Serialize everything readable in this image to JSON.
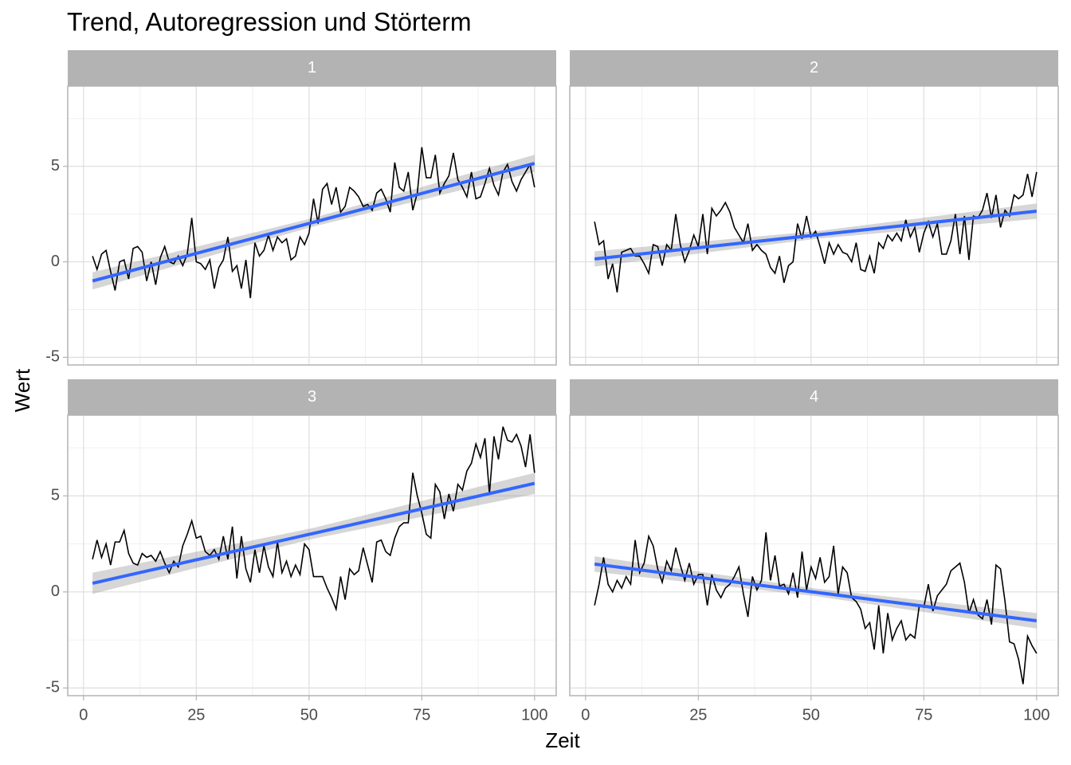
{
  "chart_data": {
    "type": "line",
    "title": "Trend, Autoregression und Störterm",
    "x_label": "Zeit",
    "y_label": "Wert",
    "xlim": [
      -3.5,
      104.8
    ],
    "ylim": [
      -5.4,
      9.2
    ],
    "xticks": [
      0,
      25,
      50,
      75,
      100
    ],
    "yticks": [
      -5,
      0,
      5
    ],
    "grid": true,
    "minor_grid": true,
    "line_color": "#000000",
    "fit_color": "#3366FF",
    "band_color": "#999999",
    "x": [
      2,
      3,
      4,
      5,
      6,
      7,
      8,
      9,
      10,
      11,
      12,
      13,
      14,
      15,
      16,
      17,
      18,
      19,
      20,
      21,
      22,
      23,
      24,
      25,
      26,
      27,
      28,
      29,
      30,
      31,
      32,
      33,
      34,
      35,
      36,
      37,
      38,
      39,
      40,
      41,
      42,
      43,
      44,
      45,
      46,
      47,
      48,
      49,
      50,
      51,
      52,
      53,
      54,
      55,
      56,
      57,
      58,
      59,
      60,
      61,
      62,
      63,
      64,
      65,
      66,
      67,
      68,
      69,
      70,
      71,
      72,
      73,
      74,
      75,
      76,
      77,
      78,
      79,
      80,
      81,
      82,
      83,
      84,
      85,
      86,
      87,
      88,
      89,
      90,
      91,
      92,
      93,
      94,
      95,
      96,
      97,
      98,
      99,
      100
    ],
    "facets": [
      {
        "name": "1",
        "values": [
          0.3,
          -0.4,
          0.4,
          0.6,
          -0.5,
          -1.5,
          0.0,
          0.1,
          -0.9,
          0.7,
          0.8,
          0.5,
          -1.0,
          0.0,
          -1.2,
          0.2,
          0.8,
          0.0,
          -0.1,
          0.3,
          -0.2,
          0.4,
          2.3,
          0.0,
          -0.1,
          -0.4,
          0.1,
          -1.4,
          -0.3,
          0.1,
          1.3,
          -0.5,
          -0.2,
          -1.4,
          0.1,
          -1.9,
          1.0,
          0.3,
          0.6,
          1.4,
          0.6,
          1.3,
          1.0,
          1.2,
          0.1,
          0.3,
          1.3,
          0.9,
          1.5,
          3.3,
          2.0,
          3.8,
          4.1,
          3.0,
          3.9,
          2.6,
          2.9,
          3.9,
          3.7,
          3.4,
          2.9,
          3.0,
          2.7,
          3.6,
          3.8,
          3.3,
          2.6,
          5.2,
          3.9,
          3.7,
          4.7,
          2.7,
          3.6,
          6.0,
          4.4,
          4.4,
          5.6,
          3.6,
          4.1,
          4.5,
          5.7,
          4.3,
          3.9,
          3.4,
          4.7,
          3.3,
          3.4,
          4.1,
          4.9,
          4.0,
          3.5,
          4.7,
          5.1,
          4.2,
          3.7,
          4.3,
          4.7,
          5.1,
          3.9
        ],
        "fit": {
          "x": [
            2,
            51,
            100
          ],
          "y": [
            -1.0,
            2.07,
            5.15
          ],
          "lower": [
            -1.45,
            1.85,
            4.7
          ],
          "upper": [
            -0.55,
            2.3,
            5.6
          ]
        }
      },
      {
        "name": "2",
        "values": [
          2.1,
          0.9,
          1.1,
          -0.9,
          -0.1,
          -1.6,
          0.5,
          0.6,
          0.7,
          0.3,
          0.3,
          -0.1,
          -0.6,
          0.9,
          0.8,
          -0.2,
          0.9,
          0.6,
          2.5,
          0.9,
          0.0,
          0.6,
          1.4,
          0.8,
          2.5,
          0.4,
          2.8,
          2.4,
          2.7,
          3.1,
          2.6,
          1.8,
          1.4,
          1.0,
          2.0,
          0.6,
          0.9,
          0.6,
          0.4,
          -0.3,
          -0.6,
          0.3,
          -1.1,
          -0.2,
          0.0,
          2.0,
          1.2,
          2.4,
          1.3,
          1.6,
          0.8,
          -0.1,
          1.0,
          0.4,
          0.9,
          0.5,
          0.4,
          0.0,
          1.0,
          -0.4,
          -0.5,
          0.3,
          -0.6,
          1.0,
          0.7,
          1.4,
          1.1,
          1.5,
          1.1,
          2.2,
          1.3,
          1.8,
          0.5,
          1.5,
          2.1,
          1.3,
          2.0,
          0.4,
          0.4,
          1.1,
          2.5,
          0.4,
          2.4,
          0.1,
          2.4,
          2.3,
          2.7,
          3.6,
          2.3,
          3.5,
          1.8,
          2.7,
          2.4,
          3.5,
          3.3,
          3.5,
          4.6,
          3.4,
          4.7
        ],
        "fit": {
          "x": [
            2,
            51,
            100
          ],
          "y": [
            0.15,
            1.4,
            2.65
          ],
          "lower": [
            -0.25,
            1.2,
            2.25
          ],
          "upper": [
            0.55,
            1.6,
            3.05
          ]
        }
      },
      {
        "name": "3",
        "values": [
          1.7,
          2.7,
          1.8,
          2.5,
          1.4,
          2.6,
          2.6,
          3.2,
          2.0,
          1.5,
          1.4,
          2.0,
          1.8,
          1.9,
          1.6,
          2.1,
          1.5,
          1.0,
          1.6,
          1.3,
          2.4,
          3.0,
          3.7,
          2.8,
          2.9,
          2.1,
          1.9,
          2.2,
          1.7,
          2.9,
          1.7,
          3.4,
          0.7,
          2.9,
          1.2,
          0.5,
          2.2,
          1.0,
          2.4,
          1.3,
          0.8,
          2.6,
          1.0,
          1.6,
          0.8,
          1.4,
          0.9,
          2.5,
          2.2,
          0.8,
          0.8,
          0.8,
          0.2,
          -0.3,
          -0.9,
          0.8,
          -0.4,
          1.2,
          0.9,
          1.1,
          2.3,
          1.4,
          0.5,
          2.6,
          2.7,
          2.1,
          1.9,
          2.8,
          3.4,
          3.6,
          3.6,
          6.2,
          5.0,
          4.1,
          3.0,
          2.8,
          5.6,
          5.2,
          3.8,
          5.1,
          4.2,
          5.6,
          5.3,
          6.3,
          6.7,
          7.7,
          7.0,
          8.0,
          5.1,
          8.1,
          6.9,
          8.6,
          7.9,
          7.8,
          8.2,
          7.6,
          6.5,
          8.2,
          6.2
        ],
        "fit": {
          "x": [
            2,
            51,
            100
          ],
          "y": [
            0.45,
            3.05,
            5.65
          ],
          "lower": [
            -0.1,
            2.77,
            5.1
          ],
          "upper": [
            1.0,
            3.33,
            6.2
          ]
        }
      },
      {
        "name": "4",
        "values": [
          -0.7,
          0.4,
          1.8,
          0.4,
          0.0,
          0.6,
          0.2,
          0.8,
          0.4,
          2.7,
          1.0,
          1.5,
          2.9,
          2.4,
          1.2,
          0.5,
          1.6,
          1.1,
          2.3,
          1.4,
          0.6,
          1.5,
          0.4,
          0.9,
          0.9,
          -0.7,
          0.9,
          0.1,
          -0.3,
          0.2,
          0.4,
          0.8,
          1.3,
          -0.1,
          -1.3,
          0.8,
          0.1,
          0.6,
          3.1,
          0.6,
          1.9,
          0.3,
          0.4,
          -0.1,
          1.0,
          -0.3,
          2.1,
          0.1,
          1.3,
          0.7,
          1.8,
          0.5,
          0.8,
          2.4,
          -0.1,
          1.3,
          1.0,
          -0.3,
          -0.5,
          -0.9,
          -1.9,
          -1.6,
          -3.0,
          -0.7,
          -3.2,
          -1.1,
          -2.5,
          -1.9,
          -1.5,
          -2.5,
          -2.2,
          -2.4,
          -0.7,
          -0.8,
          0.4,
          -1.0,
          -0.2,
          0.1,
          0.4,
          1.1,
          1.3,
          1.5,
          0.5,
          -1.1,
          -0.4,
          -1.2,
          -1.4,
          -0.4,
          -1.7,
          1.4,
          1.2,
          -0.5,
          -2.6,
          -2.7,
          -3.5,
          -4.8,
          -2.3,
          -2.8,
          -3.2
        ],
        "fit": {
          "x": [
            2,
            51,
            100
          ],
          "y": [
            1.45,
            -0.02,
            -1.5
          ],
          "lower": [
            1.05,
            -0.22,
            -1.9
          ],
          "upper": [
            1.85,
            0.18,
            -1.1
          ]
        }
      }
    ]
  }
}
